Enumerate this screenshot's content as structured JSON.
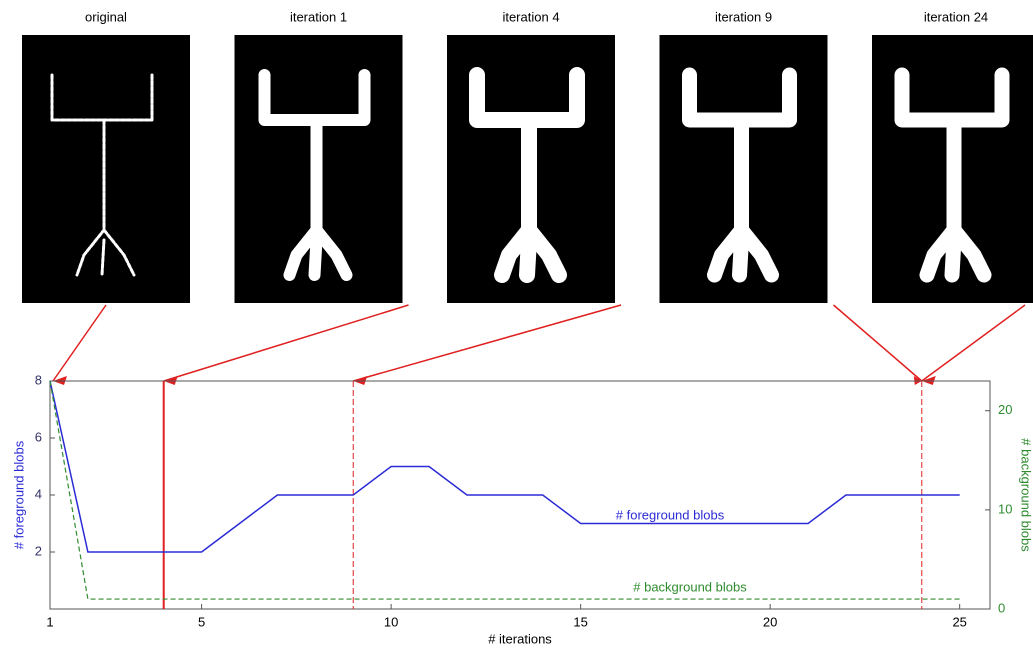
{
  "chart_data": {
    "type": "line",
    "panels": [
      {
        "label": "original",
        "x": 1
      },
      {
        "label": "iteration 1",
        "x": 4
      },
      {
        "label": "iteration 4",
        "x": 9
      },
      {
        "label": "iteration 9",
        "x": 24
      },
      {
        "label": "iteration 24",
        "x": 24
      }
    ],
    "markers": [
      {
        "x": 4,
        "style": "solid"
      },
      {
        "x": 9,
        "style": "dashed"
      },
      {
        "x": 24,
        "style": "dashed"
      }
    ],
    "x": [
      1,
      2,
      3,
      4,
      5,
      6,
      7,
      8,
      9,
      10,
      11,
      12,
      13,
      14,
      15,
      16,
      17,
      18,
      19,
      20,
      21,
      22,
      23,
      24,
      25
    ],
    "series": [
      {
        "name": "# foreground blobs",
        "color": "#2b2bd6",
        "values": [
          8,
          2,
          2,
          2,
          2,
          3,
          4,
          4,
          4,
          5,
          5,
          4,
          4,
          4,
          3,
          3,
          3,
          3,
          3,
          3,
          3,
          4,
          4,
          4,
          4
        ]
      },
      {
        "name": "# background blobs",
        "color": "#2e8b2e",
        "axis": "y2",
        "values": [
          23,
          1,
          1,
          1,
          1,
          1,
          1,
          1,
          1,
          1,
          1,
          1,
          1,
          1,
          1,
          1,
          1,
          1,
          1,
          1,
          1,
          1,
          1,
          1,
          1
        ]
      }
    ],
    "xlabel": "# iterations",
    "ylabel": "# foreground blobs",
    "y2label": "# background blobs",
    "xlim": [
      1,
      25.8
    ],
    "xticks": [
      1,
      5,
      10,
      15,
      20,
      25
    ],
    "ylim": [
      0,
      8
    ],
    "yticks": [
      2,
      4,
      6,
      8
    ],
    "y2lim": [
      0,
      23
    ],
    "y2ticks": [
      0,
      10,
      20
    ],
    "marker_color": "#e02020"
  }
}
